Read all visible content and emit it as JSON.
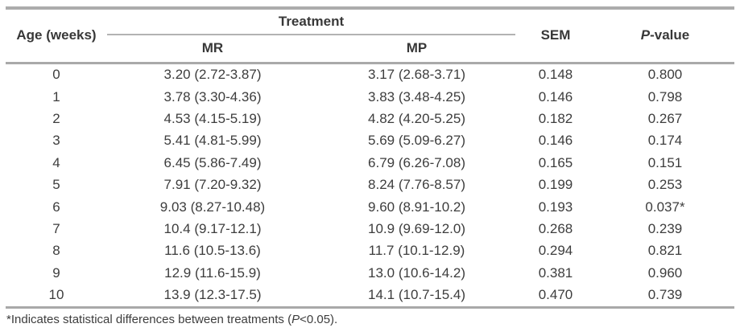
{
  "table": {
    "columns": {
      "age": "Age (weeks)",
      "treatment": "Treatment",
      "mr": "MR",
      "mp": "MP",
      "sem": "SEM",
      "p_italic": "P",
      "p_rest": "-value"
    },
    "rows": [
      {
        "age": "0",
        "mr": "3.20 (2.72-3.87)",
        "mp": "3.17 (2.68-3.71)",
        "sem": "0.148",
        "p": "0.800"
      },
      {
        "age": "1",
        "mr": "3.78 (3.30-4.36)",
        "mp": "3.83 (3.48-4.25)",
        "sem": "0.146",
        "p": "0.798"
      },
      {
        "age": "2",
        "mr": "4.53 (4.15-5.19)",
        "mp": "4.82 (4.20-5.25)",
        "sem": "0.182",
        "p": "0.267"
      },
      {
        "age": "3",
        "mr": "5.41 (4.81-5.99)",
        "mp": "5.69 (5.09-6.27)",
        "sem": "0.146",
        "p": "0.174"
      },
      {
        "age": "4",
        "mr": "6.45 (5.86-7.49)",
        "mp": "6.79 (6.26-7.08)",
        "sem": "0.165",
        "p": "0.151"
      },
      {
        "age": "5",
        "mr": "7.91 (7.20-9.32)",
        "mp": "8.24 (7.76-8.57)",
        "sem": "0.199",
        "p": "0.253"
      },
      {
        "age": "6",
        "mr": "9.03 (8.27-10.48)",
        "mp": "9.60 (8.91-10.2)",
        "sem": "0.193",
        "p": "0.037*"
      },
      {
        "age": "7",
        "mr": "10.4 (9.17-12.1)",
        "mp": "10.9 (9.69-12.0)",
        "sem": "0.268",
        "p": "0.239"
      },
      {
        "age": "8",
        "mr": "11.6 (10.5-13.6)",
        "mp": "11.7 (10.1-12.9)",
        "sem": "0.294",
        "p": "0.821"
      },
      {
        "age": "9",
        "mr": "12.9 (11.6-15.9)",
        "mp": "13.0 (10.6-14.2)",
        "sem": "0.381",
        "p": "0.960"
      },
      {
        "age": "10",
        "mr": "13.9 (12.3-17.5)",
        "mp": "14.1 (10.7-15.4)",
        "sem": "0.470",
        "p": "0.739"
      }
    ]
  },
  "footnote": {
    "pre": "*Indicates statistical differences between treatments (",
    "p_italic": "P",
    "post": "<0.05)."
  },
  "colors": {
    "text": "#3d3d3d",
    "rule_heavy": "#a9a9a9",
    "rule_light": "#b3b3b3",
    "background": "#ffffff"
  }
}
